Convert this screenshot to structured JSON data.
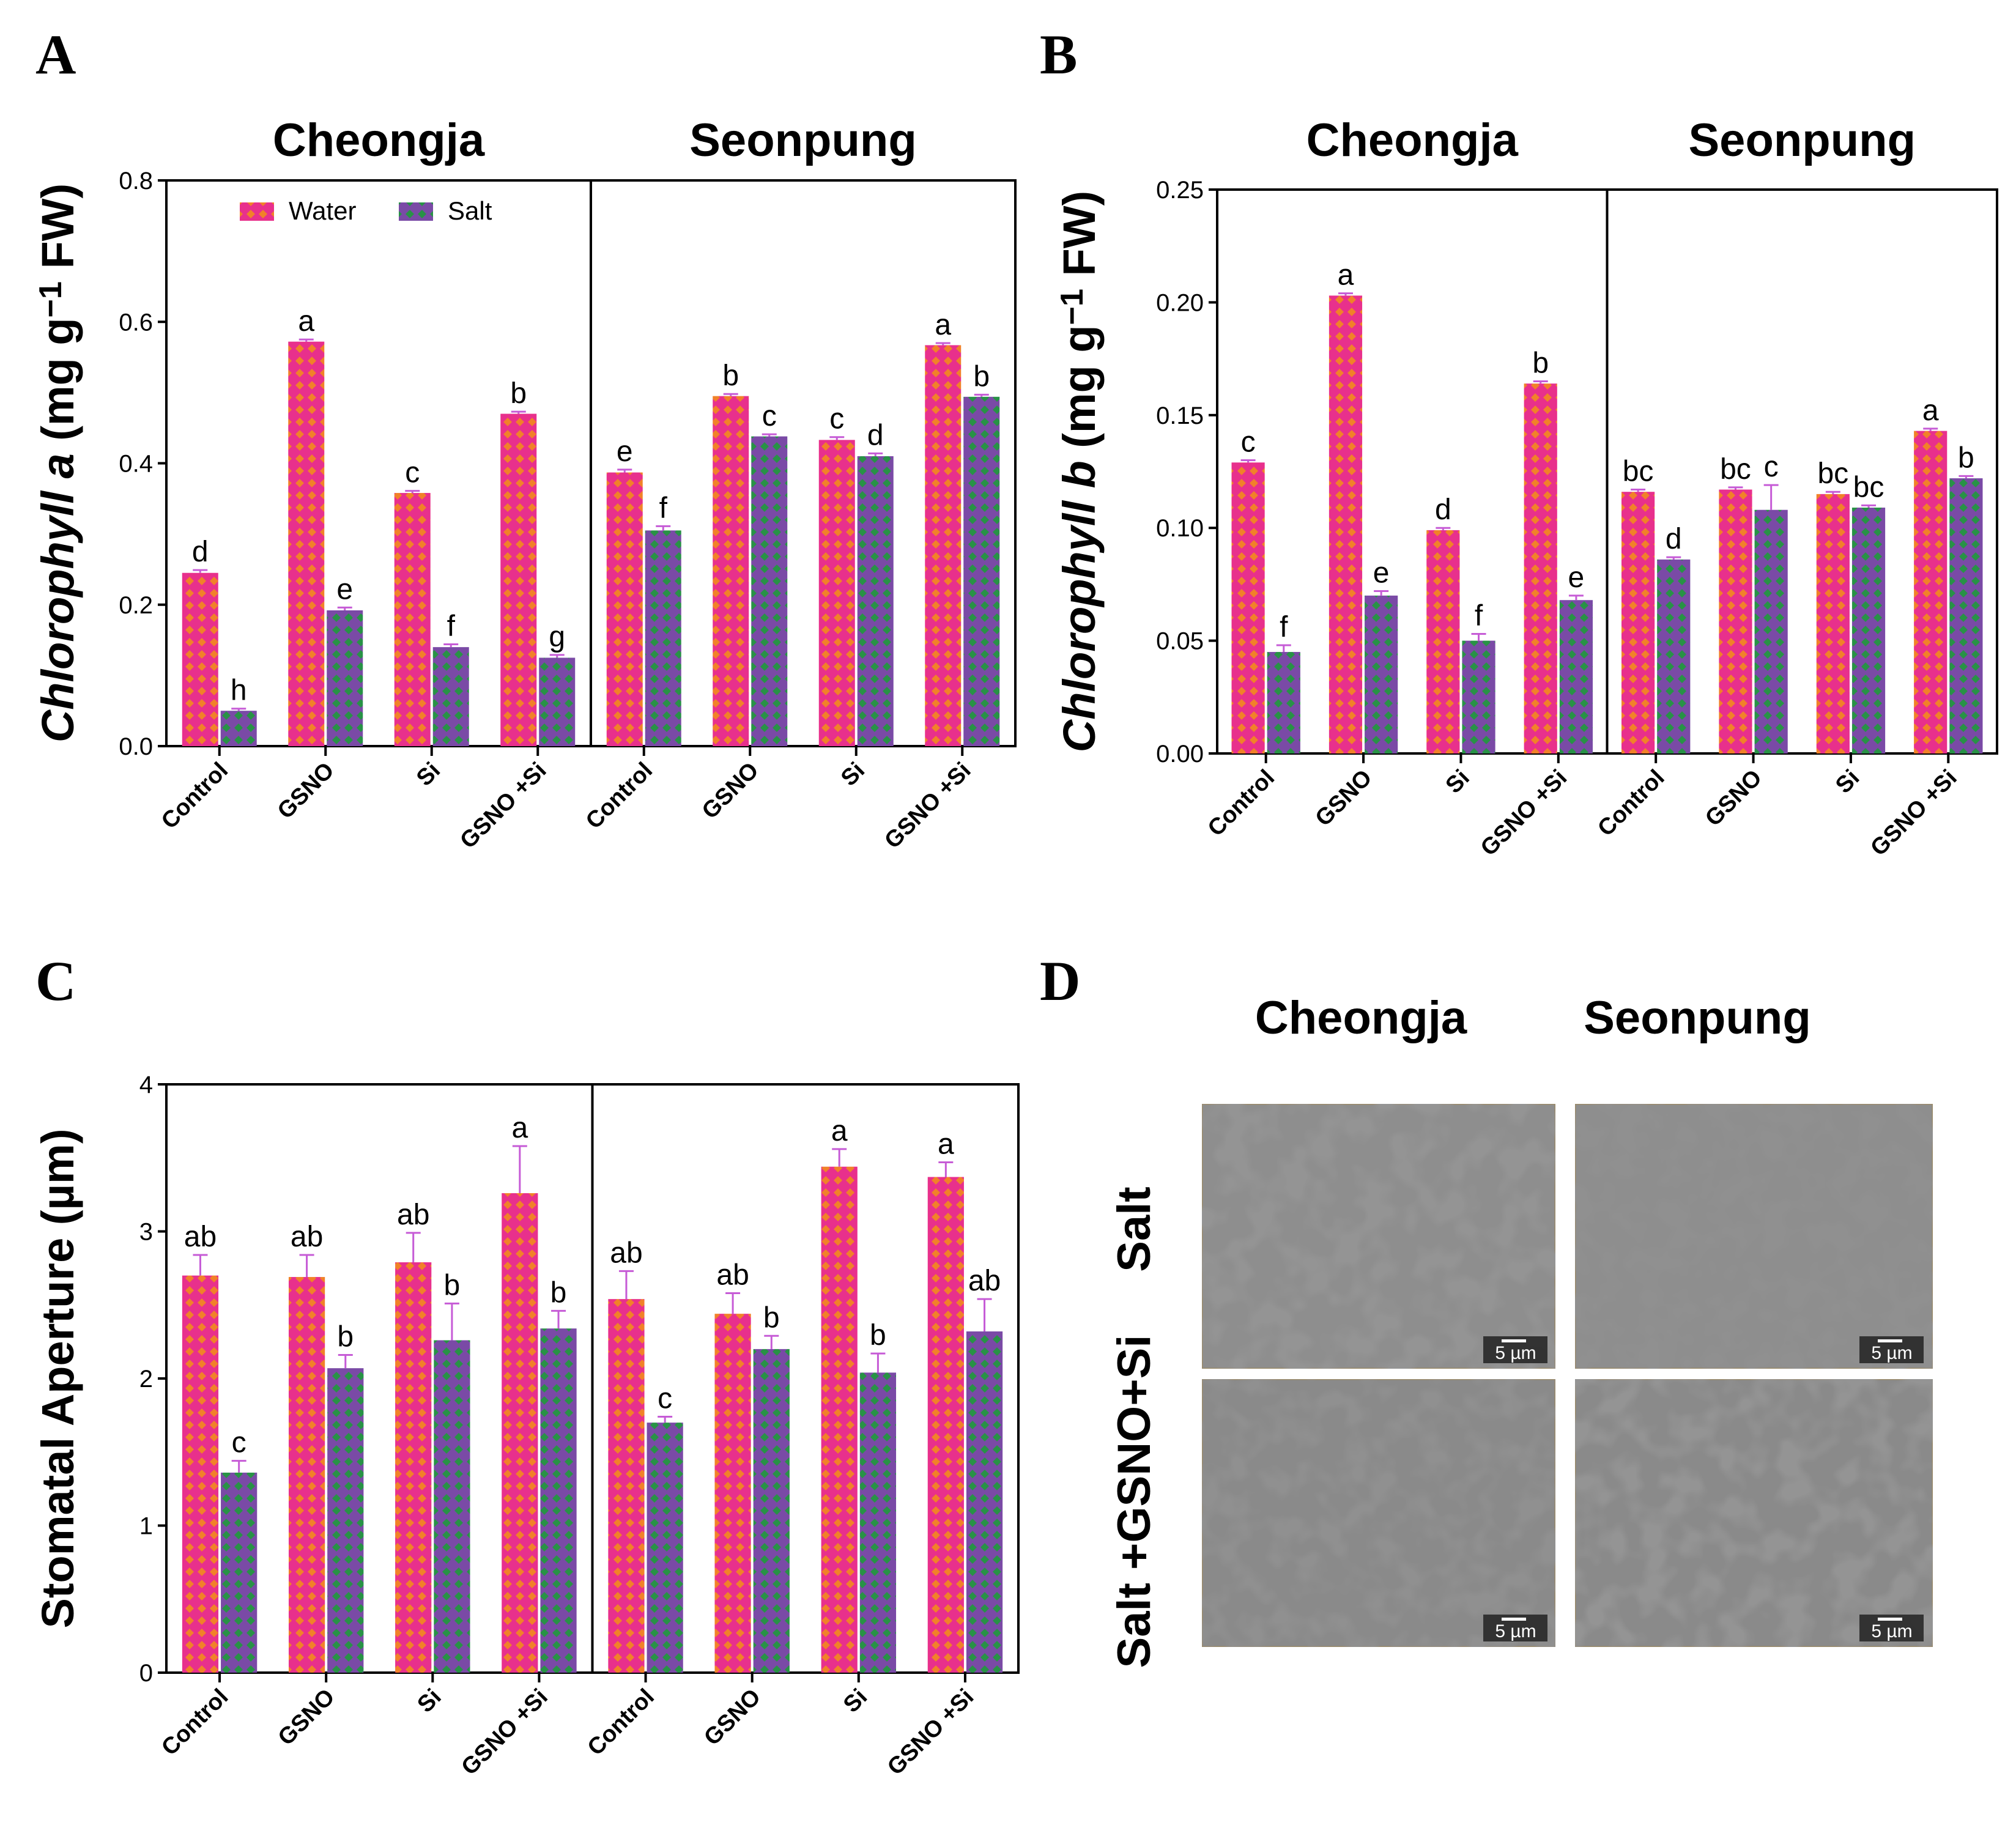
{
  "colors": {
    "water_base": "#e8308c",
    "water_dot": "#f28a1e",
    "salt_base": "#6a4c9c",
    "salt_dot": "#1f9a3c",
    "error_bar": "#c65bd6",
    "axis": "#000000"
  },
  "chart_data": [
    {
      "panel": "A",
      "type": "bar",
      "ylabel_parts": [
        "Chlorophyll a",
        " (mg g",
        "−1",
        " FW)"
      ],
      "ylim": [
        0,
        0.8
      ],
      "yticks": [
        "0.0",
        "0.2",
        "0.4",
        "0.6",
        "0.8"
      ],
      "ytick_values": [
        0,
        0.2,
        0.4,
        0.6,
        0.8
      ],
      "legend": [
        "Water",
        "Salt"
      ],
      "groups": [
        {
          "name": "Cheongja",
          "categories": [
            "Control",
            "GSNO",
            "Si",
            "GSNO +Si"
          ],
          "series": [
            {
              "name": "Water",
              "values": [
                0.245,
                0.572,
                0.358,
                0.47
              ],
              "errors": [
                0.004,
                0.003,
                0.003,
                0.003
              ],
              "letters": [
                "d",
                "a",
                "c",
                "b"
              ]
            },
            {
              "name": "Salt",
              "values": [
                0.05,
                0.192,
                0.14,
                0.125
              ],
              "errors": [
                0.003,
                0.004,
                0.004,
                0.004
              ],
              "letters": [
                "h",
                "e",
                "f",
                "g"
              ]
            }
          ]
        },
        {
          "name": "Seonpung",
          "categories": [
            "Control",
            "GSNO",
            "Si",
            "GSNO +Si"
          ],
          "series": [
            {
              "name": "Water",
              "values": [
                0.387,
                0.495,
                0.433,
                0.567
              ],
              "errors": [
                0.004,
                0.003,
                0.004,
                0.003
              ],
              "letters": [
                "e",
                "b",
                "c",
                "a"
              ]
            },
            {
              "name": "Salt",
              "values": [
                0.305,
                0.438,
                0.41,
                0.494
              ],
              "errors": [
                0.006,
                0.003,
                0.004,
                0.003
              ],
              "letters": [
                "f",
                "c",
                "d",
                "b"
              ]
            }
          ]
        }
      ]
    },
    {
      "panel": "B",
      "type": "bar",
      "ylabel_parts": [
        "Chlorophyll b",
        " (mg g",
        "−1",
        " FW)"
      ],
      "ylim": [
        0,
        0.25
      ],
      "yticks": [
        "0.00",
        "0.05",
        "0.10",
        "0.15",
        "0.20",
        "0.25"
      ],
      "ytick_values": [
        0,
        0.05,
        0.1,
        0.15,
        0.2,
        0.25
      ],
      "legend": [],
      "groups": [
        {
          "name": "Cheongja",
          "categories": [
            "Control",
            "GSNO",
            "Si",
            "GSNO +Si"
          ],
          "series": [
            {
              "name": "Water",
              "values": [
                0.129,
                0.203,
                0.099,
                0.164
              ],
              "errors": [
                0.001,
                0.001,
                0.001,
                0.001
              ],
              "letters": [
                "c",
                "a",
                "d",
                "b"
              ]
            },
            {
              "name": "Salt",
              "values": [
                0.045,
                0.07,
                0.05,
                0.068
              ],
              "errors": [
                0.003,
                0.002,
                0.003,
                0.002
              ],
              "letters": [
                "f",
                "e",
                "f",
                "e"
              ]
            }
          ]
        },
        {
          "name": "Seonpung",
          "categories": [
            "Control",
            "GSNO",
            "Si",
            "GSNO +Si"
          ],
          "series": [
            {
              "name": "Water",
              "values": [
                0.116,
                0.117,
                0.115,
                0.143
              ],
              "errors": [
                0.001,
                0.001,
                0.001,
                0.001
              ],
              "letters": [
                "bc",
                "bc",
                "bc",
                "a"
              ]
            },
            {
              "name": "Salt",
              "values": [
                0.086,
                0.108,
                0.109,
                0.122
              ],
              "errors": [
                0.001,
                0.011,
                0.001,
                0.001
              ],
              "letters": [
                "d",
                "c",
                "bc",
                "b"
              ]
            }
          ]
        }
      ]
    },
    {
      "panel": "C",
      "type": "bar",
      "ylabel_parts": [
        "Stomatal Aperture (µm)"
      ],
      "ylim": [
        0,
        4
      ],
      "yticks": [
        "0",
        "1",
        "2",
        "3",
        "4"
      ],
      "ytick_values": [
        0,
        1,
        2,
        3,
        4
      ],
      "legend": [],
      "groups": [
        {
          "name": "",
          "categories": [
            "Control",
            "GSNO",
            "Si",
            "GSNO +Si"
          ],
          "series": [
            {
              "name": "Water",
              "values": [
                2.7,
                2.69,
                2.79,
                3.26
              ],
              "errors": [
                0.14,
                0.15,
                0.2,
                0.32
              ],
              "letters": [
                "ab",
                "ab",
                "ab",
                "a"
              ]
            },
            {
              "name": "Salt",
              "values": [
                1.36,
                2.07,
                2.26,
                2.34
              ],
              "errors": [
                0.08,
                0.09,
                0.25,
                0.12
              ],
              "letters": [
                "c",
                "b",
                "b",
                "b"
              ]
            }
          ]
        },
        {
          "name": "",
          "categories": [
            "Control",
            "GSNO",
            "Si",
            "GSNO +Si"
          ],
          "series": [
            {
              "name": "Water",
              "values": [
                2.54,
                2.44,
                3.44,
                3.37
              ],
              "errors": [
                0.19,
                0.14,
                0.12,
                0.1
              ],
              "letters": [
                "ab",
                "ab",
                "a",
                "a"
              ]
            },
            {
              "name": "Salt",
              "values": [
                1.7,
                2.2,
                2.04,
                2.32
              ],
              "errors": [
                0.04,
                0.09,
                0.13,
                0.22
              ],
              "letters": [
                "c",
                "b",
                "b",
                "ab"
              ]
            }
          ]
        }
      ]
    }
  ],
  "panel_d": {
    "letter": "D",
    "columns": [
      "Cheongja",
      "Seonpung"
    ],
    "rows": [
      "Salt",
      "Salt +GSNO+Si"
    ],
    "scale_bar": "5 µm"
  }
}
